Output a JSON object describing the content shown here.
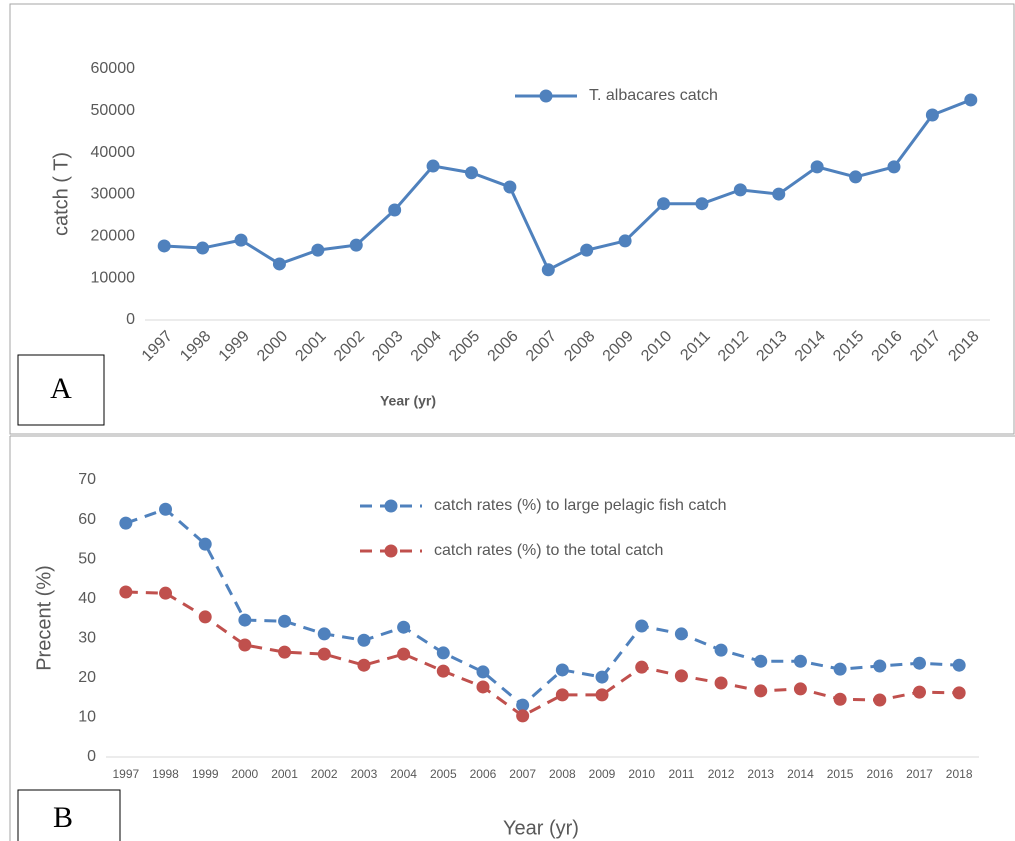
{
  "chart_data": [
    {
      "type": "line",
      "panel_label": "A",
      "xlabel": "Year (yr)",
      "ylabel": "catch ( T)",
      "categories": [
        "1997",
        "1998",
        "1999",
        "2000",
        "2001",
        "2002",
        "2003",
        "2004",
        "2005",
        "2006",
        "2007",
        "2008",
        "2009",
        "2010",
        "2011",
        "2012",
        "2013",
        "2014",
        "2015",
        "2016",
        "2017",
        "2018"
      ],
      "series": [
        {
          "name": "T. albacares  catch",
          "color": "#4f81bd",
          "values": [
            17700,
            17200,
            19100,
            13400,
            16700,
            17900,
            26300,
            36800,
            35200,
            31800,
            12000,
            16700,
            18900,
            27800,
            27800,
            31100,
            30100,
            36600,
            34200,
            36600,
            49000,
            52600
          ]
        }
      ],
      "ylim": [
        0,
        60000
      ],
      "yticks": [
        0,
        10000,
        20000,
        30000,
        40000,
        50000,
        60000
      ],
      "grid": false,
      "dashed": false
    },
    {
      "type": "line",
      "panel_label": "B",
      "xlabel": "Year (yr)",
      "ylabel": "Precent (%)",
      "categories": [
        "1997",
        "1998",
        "1999",
        "2000",
        "2001",
        "2002",
        "2003",
        "2004",
        "2005",
        "2006",
        "2007",
        "2008",
        "2009",
        "2010",
        "2011",
        "2012",
        "2013",
        "2014",
        "2015",
        "2016",
        "2017",
        "2018"
      ],
      "series": [
        {
          "name": "catch rates (%)  to  large pelagic fish catch",
          "color": "#4f81bd",
          "values": [
            59.1,
            62.6,
            53.8,
            34.6,
            34.3,
            31.1,
            29.5,
            32.8,
            26.3,
            21.5,
            13.1,
            22.0,
            20.2,
            33.1,
            31.1,
            27.0,
            24.2,
            24.2,
            22.2,
            23.0,
            23.7,
            23.2
          ]
        },
        {
          "name": "catch rates (%)  to the total catch",
          "color": "#c0504d",
          "values": [
            41.7,
            41.4,
            35.4,
            28.3,
            26.5,
            26.0,
            23.2,
            26.0,
            21.7,
            17.7,
            10.4,
            15.7,
            15.7,
            22.7,
            20.5,
            18.7,
            16.7,
            17.2,
            14.6,
            14.4,
            16.4,
            16.2
          ]
        }
      ],
      "ylim": [
        0,
        70
      ],
      "yticks": [
        0,
        10,
        20,
        30,
        40,
        50,
        60,
        70
      ],
      "grid": false,
      "dashed": true
    }
  ]
}
